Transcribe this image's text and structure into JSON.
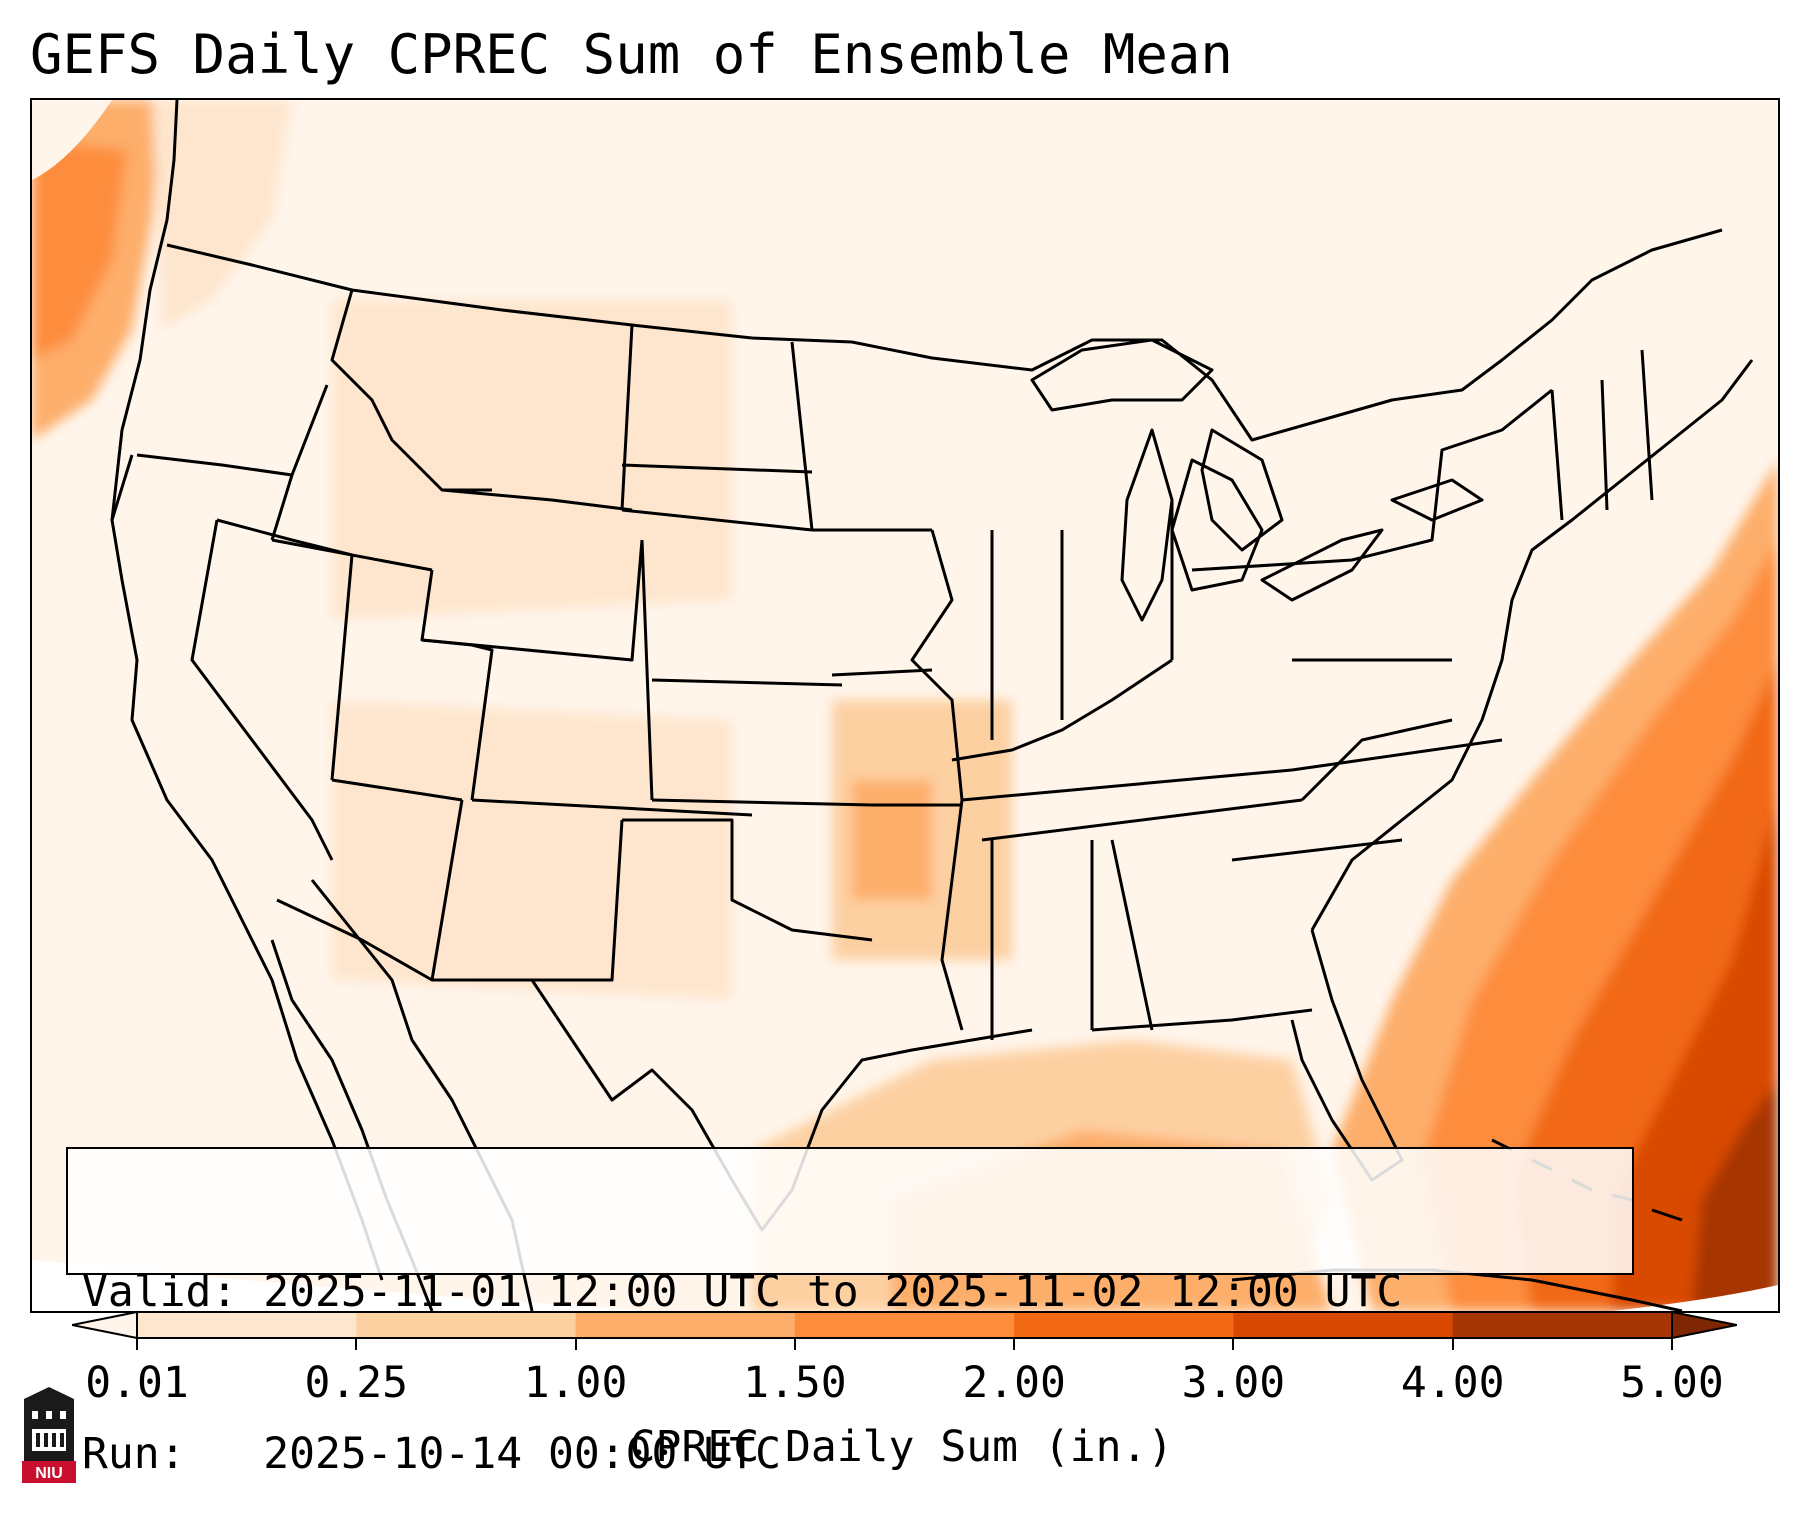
{
  "title": "GEFS Daily CPREC Sum of Ensemble Mean",
  "info": {
    "valid": "Valid: 2025-11-01 12:00 UTC to 2025-11-02 12:00 UTC",
    "run": "Run:   2025-10-14 00:00 UTC"
  },
  "colorbar": {
    "label": "CPREC Daily Sum (in.)",
    "ticks": [
      "0.01",
      "0.25",
      "1.00",
      "1.50",
      "2.00",
      "3.00",
      "4.00",
      "5.00"
    ],
    "colors": [
      "#fff5eb",
      "#fee6ce",
      "#fdd0a2",
      "#fdae6b",
      "#fd8d3c",
      "#f16913",
      "#d94801",
      "#a63603",
      "#7f2704"
    ],
    "extend": "both"
  },
  "map": {
    "projection": "conic",
    "region": "CONUS",
    "borders": "state and country boundaries"
  },
  "logo": {
    "text": "NIU",
    "name": "niu-logo-icon"
  },
  "colors": {
    "background": "#ffffff",
    "frame": "#000000"
  }
}
